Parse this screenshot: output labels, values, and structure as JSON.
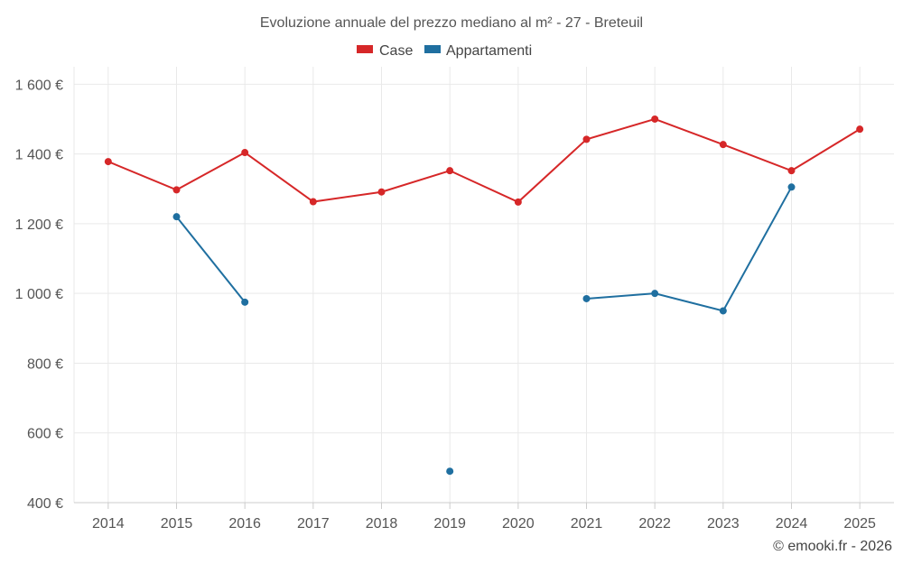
{
  "chart_data": {
    "type": "line",
    "title": "Evoluzione annuale del prezzo mediano al m² - 27 - Breteuil",
    "categories": [
      "2014",
      "2015",
      "2016",
      "2017",
      "2018",
      "2019",
      "2020",
      "2021",
      "2022",
      "2023",
      "2024",
      "2025"
    ],
    "ylim": [
      400,
      1650
    ],
    "yticks": [
      400,
      600,
      800,
      1000,
      1200,
      1400,
      1600
    ],
    "ytick_labels": [
      "400 €",
      "600 €",
      "800 €",
      "1 000 €",
      "1 200 €",
      "1 400 €",
      "1 600 €"
    ],
    "grid": true,
    "legend_position": "top-center",
    "series": [
      {
        "name": "Case",
        "color": "#d62728",
        "values": [
          1378,
          1297,
          1404,
          1263,
          1291,
          1352,
          1262,
          1442,
          1500,
          1427,
          1352,
          1471
        ]
      },
      {
        "name": "Appartamenti",
        "color": "#1f6fa0",
        "values": [
          null,
          1220,
          975,
          null,
          null,
          490,
          null,
          985,
          1000,
          950,
          1305,
          null
        ]
      }
    ]
  },
  "credit": "© emooki.fr - 2026"
}
